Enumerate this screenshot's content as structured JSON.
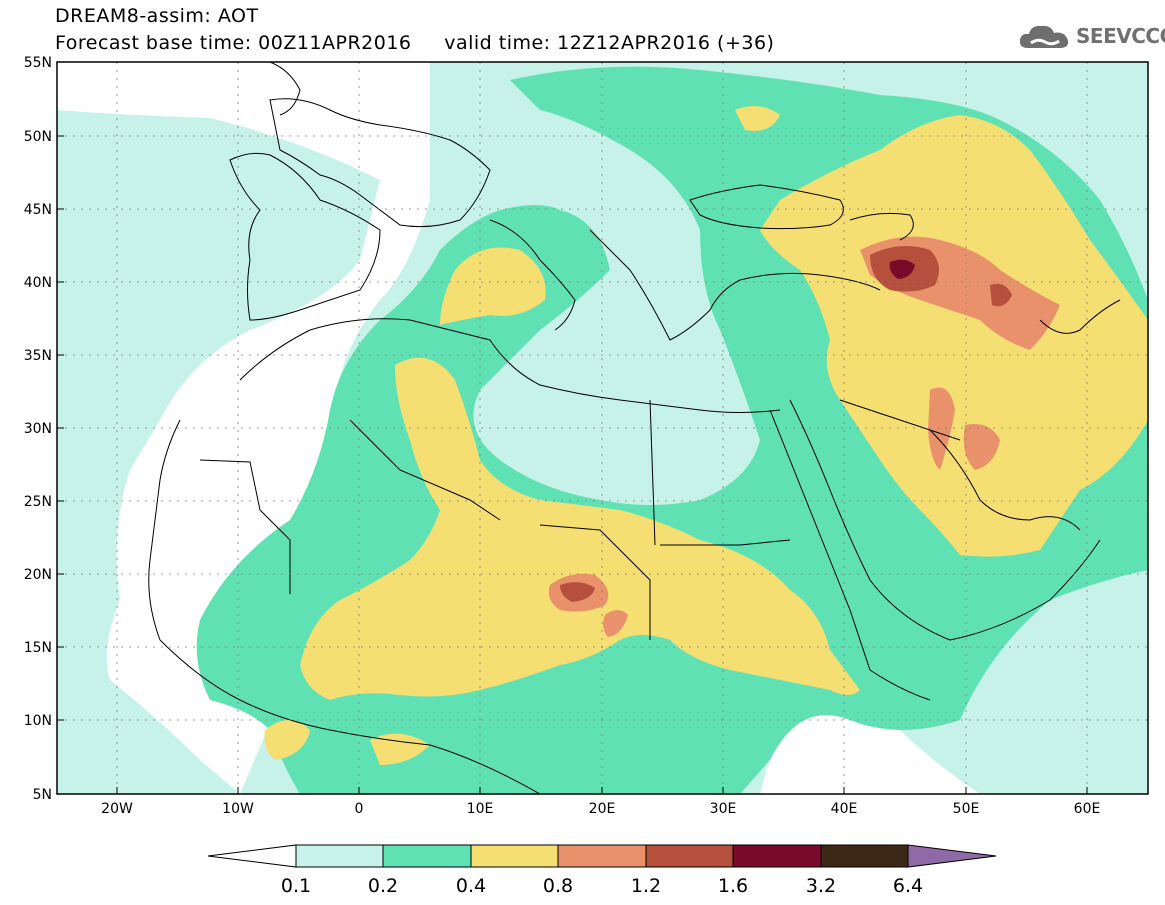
{
  "header": {
    "title_line1": "DREAM8-assim: AOT",
    "title_line2": "Forecast base time: 00Z11APR2016     valid time: 12Z12APR2016 (+36)",
    "logo_text": "SEEVCCC"
  },
  "map": {
    "lat_labels": [
      "55N",
      "50N",
      "45N",
      "40N",
      "35N",
      "30N",
      "25N",
      "20N",
      "15N",
      "10N",
      "5N"
    ],
    "lon_labels": [
      "20W",
      "10W",
      "0",
      "10E",
      "20E",
      "30E",
      "40E",
      "50E",
      "60E"
    ]
  },
  "colorbar": {
    "ticks": [
      "0.1",
      "0.2",
      "0.4",
      "0.8",
      "1.2",
      "1.6",
      "3.2",
      "6.4"
    ],
    "colors": {
      "c01": "#c6f2ea",
      "c02": "#5fe1b4",
      "c04": "#f5df72",
      "c08": "#e8916a",
      "c12": "#b4503c",
      "c16": "#7a0a2a",
      "c32": "#3d2716",
      "c64": "#8f6aa6"
    }
  }
}
